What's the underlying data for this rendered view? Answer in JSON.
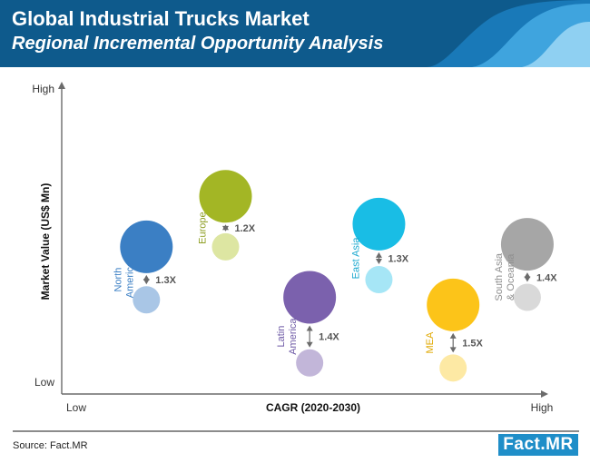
{
  "header": {
    "title": "Global Industrial Trucks Market",
    "subtitle": "Regional Incremental Opportunity Analysis"
  },
  "footer": {
    "source": "Source: Fact.MR",
    "logo": "Fact.MR"
  },
  "chart_data": {
    "type": "scatter",
    "xlabel": "CAGR (2020-2030)",
    "ylabel": "Market Value (US$ Mn)",
    "x_ticks": [
      "Low",
      "High"
    ],
    "y_ticks": [
      "Low",
      "High"
    ],
    "regions": [
      {
        "name": "North America",
        "label_lines": [
          "North",
          "America"
        ],
        "x": 0.14,
        "y_current": 0.54,
        "y_forecast": 0.33,
        "multiplier": "1.3X",
        "color": "#3b7fc4",
        "light_color": "#a9c6e6",
        "label_color": "#3b7fc4"
      },
      {
        "name": "Europe",
        "label_lines": [
          "Europe"
        ],
        "x": 0.3,
        "y_current": 0.74,
        "y_forecast": 0.54,
        "multiplier": "1.2X",
        "color": "#a3b625",
        "light_color": "#dde6a2",
        "label_color": "#8d9e22"
      },
      {
        "name": "Latin America",
        "label_lines": [
          "Latin",
          "America"
        ],
        "x": 0.47,
        "y_current": 0.34,
        "y_forecast": 0.08,
        "multiplier": "1.4X",
        "color": "#7b61ad",
        "light_color": "#c2b6d9",
        "label_color": "#6e5aa6"
      },
      {
        "name": "East Asia",
        "label_lines": [
          "East Asia"
        ],
        "x": 0.61,
        "y_current": 0.63,
        "y_forecast": 0.41,
        "multiplier": "1.3X",
        "color": "#19bde5",
        "light_color": "#a6e6f6",
        "label_color": "#1aa8cf"
      },
      {
        "name": "MEA",
        "label_lines": [
          "MEA"
        ],
        "x": 0.76,
        "y_current": 0.31,
        "y_forecast": 0.06,
        "multiplier": "1.5X",
        "color": "#fcc419",
        "light_color": "#fde9a4",
        "label_color": "#e0a800"
      },
      {
        "name": "South Asia & Oceania",
        "label_lines": [
          "South Asia",
          "& Oceania"
        ],
        "x": 0.91,
        "y_current": 0.55,
        "y_forecast": 0.34,
        "multiplier": "1.4X",
        "color": "#a6a6a6",
        "light_color": "#d9d9d9",
        "label_color": "#8f8f8f"
      }
    ]
  }
}
